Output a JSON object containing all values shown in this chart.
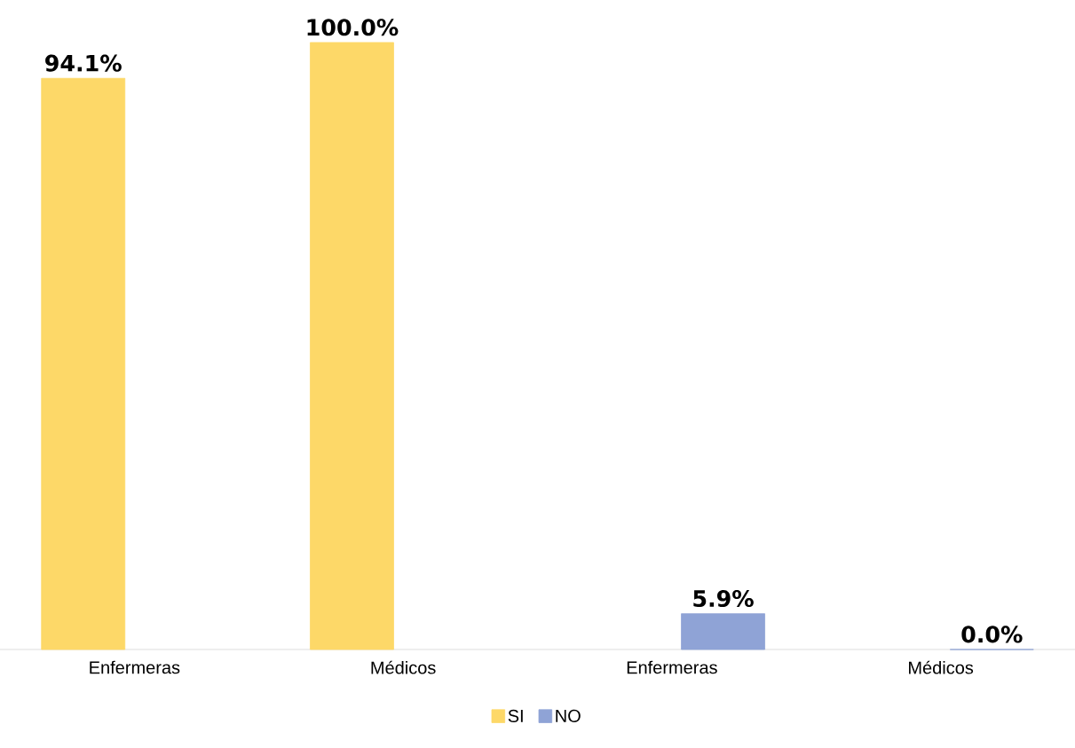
{
  "chart_data": {
    "type": "bar",
    "categories": [
      "Enfermeras",
      "Médicos",
      "Enfermeras",
      "Médicos"
    ],
    "series": [
      {
        "name": "SI",
        "color": "#fdd868",
        "values": [
          94.1,
          100.0,
          null,
          null
        ],
        "value_labels": [
          "94.1%",
          "100.0%",
          null,
          null
        ]
      },
      {
        "name": "NO",
        "color": "#8fa3d6",
        "values": [
          null,
          null,
          5.9,
          0.0
        ],
        "value_labels": [
          null,
          null,
          "5.9%",
          "0.0%"
        ]
      }
    ],
    "legend": "bottom"
  }
}
